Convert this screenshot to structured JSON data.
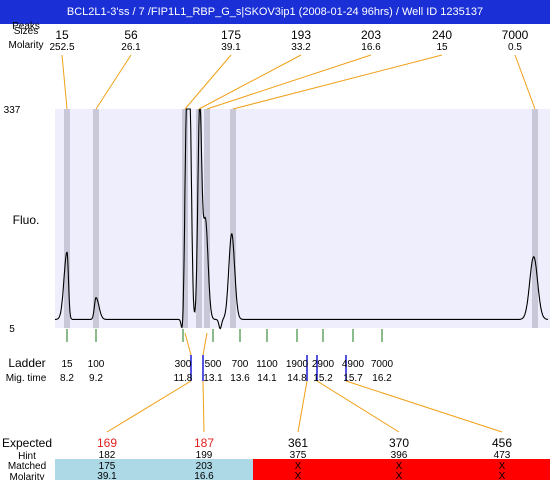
{
  "title": "BCL2L1-3'ss / 7 /FIP1L1_RBP_G_s|SKOV3ip1 (2008-01-24 96hrs) / Well ID 1235137",
  "row_labels": {
    "peaks_top": "Peaks",
    "peaks_overlap": "Sizes",
    "molarity": "Molarity",
    "fluo": "Fluo.",
    "ladder": "Ladder",
    "mig_time": "Mig. time",
    "expected": "Expected",
    "hint": "Hint",
    "matched": "Matched",
    "molarity_bottom": "Molarity"
  },
  "colors": {
    "plot_bg": "#eeeefc",
    "band": "#c8c8d8",
    "orange": "#f0a018",
    "ladder_green": "#1a7a1a",
    "marker_blue": "#1a1ad6",
    "expected_red": "#e02020",
    "matched_blue": "#add8e6",
    "unmatched_red": "#ff0000"
  },
  "chart_data": {
    "type": "line",
    "y_ticks": [
      "337",
      "5"
    ],
    "ylim": [
      5,
      337
    ],
    "peaks": [
      {
        "size": "15",
        "molarity": "252.5"
      },
      {
        "size": "56",
        "molarity": "26.1"
      },
      {
        "size": "175",
        "molarity": "39.1"
      },
      {
        "size": "193",
        "molarity": "33.2"
      },
      {
        "size": "203",
        "molarity": "16.6"
      },
      {
        "size": "240",
        "molarity": "15"
      },
      {
        "size": "7000",
        "molarity": "0.5"
      }
    ],
    "ladder": [
      {
        "size": "15",
        "time": "8.2"
      },
      {
        "size": "100",
        "time": "9.2"
      },
      {
        "size": "300",
        "time": "11.8"
      },
      {
        "size": "500",
        "time": "13.1"
      },
      {
        "size": "700",
        "time": "13.6"
      },
      {
        "size": "1100",
        "time": "14.1"
      },
      {
        "size": "1900",
        "time": "14.8"
      },
      {
        "size": "2900",
        "time": "15.2"
      },
      {
        "size": "4900",
        "time": "15.7"
      },
      {
        "size": "7000",
        "time": "16.2"
      }
    ],
    "ladder_times_numeric": [
      8.2,
      9.2,
      11.8,
      13.1,
      13.6,
      14.1,
      14.8,
      15.2,
      15.7,
      16.2
    ],
    "peak_times": [
      8.2,
      9.2,
      10.9,
      11.1,
      11.2,
      11.6,
      16.2
    ],
    "trace": {
      "time_range": [
        8.0,
        16.4
      ],
      "baseline": 18,
      "components": [
        {
          "t": 8.2,
          "h": 102,
          "w": 0.05
        },
        {
          "t": 9.2,
          "h": 33,
          "w": 0.055
        },
        {
          "t": 10.88,
          "h": 330,
          "w": 0.03
        },
        {
          "t": 10.93,
          "h": 260,
          "w": 0.025
        },
        {
          "t": 11.08,
          "h": 320,
          "w": 0.03
        },
        {
          "t": 11.17,
          "h": 150,
          "w": 0.04
        },
        {
          "t": 11.58,
          "h": 130,
          "w": 0.045
        },
        {
          "t": 16.18,
          "h": 95,
          "w": 0.06
        }
      ],
      "dips": [
        {
          "t": 10.8,
          "d": 18,
          "w": 0.02
        },
        {
          "t": 11.03,
          "d": 10,
          "w": 0.02
        },
        {
          "t": 11.4,
          "d": 14,
          "w": 0.02
        }
      ]
    },
    "markers_group1": [
      10.55,
      10.98
    ],
    "markers_group2": [
      12.45,
      12.75,
      13.15
    ],
    "expected": [
      {
        "expected": "169",
        "hint": "182",
        "matched": "175",
        "molarity": "39.1",
        "status": "matched"
      },
      {
        "expected": "187",
        "hint": "199",
        "matched": "203",
        "molarity": "16.6",
        "status": "matched"
      },
      {
        "expected": "361",
        "hint": "375",
        "matched": "X",
        "molarity": "X",
        "status": "unmatched"
      },
      {
        "expected": "370",
        "hint": "396",
        "matched": "X",
        "molarity": "X",
        "status": "unmatched"
      },
      {
        "expected": "456",
        "hint": "473",
        "matched": "X",
        "molarity": "X",
        "status": "unmatched"
      }
    ]
  }
}
